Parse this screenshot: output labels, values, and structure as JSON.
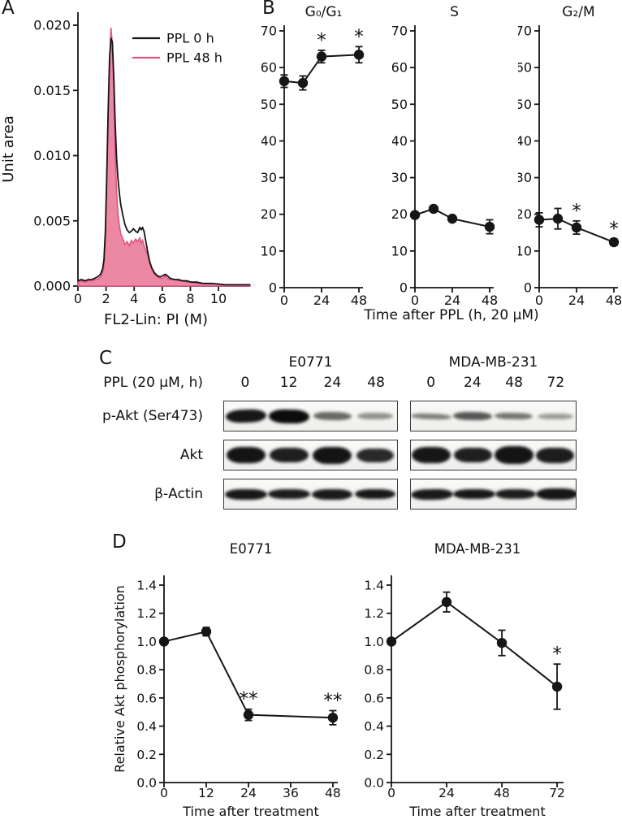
{
  "colors": {
    "ink": "#161616",
    "pink_line": "#de5680",
    "pink_fill": "#ec87a4"
  },
  "panels": {
    "a": {
      "label": "A"
    },
    "b": {
      "label": "B",
      "xlabel": "Time after PPL (h, 20 μM)"
    },
    "c": {
      "label": "C",
      "treatment_label": "PPL (20 μM, h)",
      "groups": [
        {
          "name": "E0771",
          "lanes": [
            "0",
            "12",
            "24",
            "48"
          ]
        },
        {
          "name": "MDA-MB-231",
          "lanes": [
            "0",
            "24",
            "48",
            "72"
          ]
        }
      ],
      "rows": [
        {
          "label": "p-Akt (Ser473)",
          "bands": [
            [
              {
                "i": 0.95,
                "h": 16,
                "w": 50,
                "r": -2
              },
              {
                "i": 1.0,
                "h": 17,
                "w": 50,
                "r": 1
              },
              {
                "i": 0.6,
                "h": 10,
                "w": 47,
                "r": 1
              },
              {
                "i": 0.42,
                "h": 8,
                "w": 44,
                "r": 0
              }
            ],
            [
              {
                "i": 0.5,
                "h": 7,
                "w": 50,
                "r": 2
              },
              {
                "i": 0.68,
                "h": 10,
                "w": 48,
                "r": 1
              },
              {
                "i": 0.55,
                "h": 8,
                "w": 47,
                "r": 1
              },
              {
                "i": 0.38,
                "h": 7,
                "w": 44,
                "r": 0
              }
            ]
          ]
        },
        {
          "label": "Akt",
          "bands": [
            [
              {
                "i": 0.97,
                "h": 20,
                "w": 48,
                "r": 0
              },
              {
                "i": 0.92,
                "h": 18,
                "w": 48,
                "r": 0
              },
              {
                "i": 0.97,
                "h": 21,
                "w": 48,
                "r": 0
              },
              {
                "i": 0.88,
                "h": 17,
                "w": 46,
                "r": 0
              }
            ],
            [
              {
                "i": 0.96,
                "h": 20,
                "w": 48,
                "r": 0
              },
              {
                "i": 0.92,
                "h": 18,
                "w": 47,
                "r": 0
              },
              {
                "i": 0.97,
                "h": 22,
                "w": 48,
                "r": 0
              },
              {
                "i": 0.93,
                "h": 19,
                "w": 47,
                "r": 0
              }
            ]
          ]
        },
        {
          "label": "β-Actin",
          "bands": [
            [
              {
                "i": 0.95,
                "h": 13,
                "w": 52,
                "r": 0
              },
              {
                "i": 0.93,
                "h": 12,
                "w": 52,
                "r": 0
              },
              {
                "i": 0.94,
                "h": 13,
                "w": 50,
                "r": 0
              },
              {
                "i": 0.95,
                "h": 12,
                "w": 50,
                "r": 0
              }
            ],
            [
              {
                "i": 0.94,
                "h": 13,
                "w": 52,
                "r": -1
              },
              {
                "i": 0.95,
                "h": 12,
                "w": 52,
                "r": 0
              },
              {
                "i": 0.93,
                "h": 12,
                "w": 50,
                "r": 0
              },
              {
                "i": 0.96,
                "h": 14,
                "w": 52,
                "r": 0
              }
            ]
          ]
        }
      ]
    },
    "d": {
      "label": "D"
    }
  },
  "chart_data": [
    {
      "id": "A",
      "type": "area",
      "xlabel": "FL2-Lin: PI (M)",
      "ylabel": "Unit area",
      "xlim": [
        0,
        12.25
      ],
      "ylim": [
        0,
        0.0205
      ],
      "xticks": [
        0,
        2,
        4,
        6,
        8,
        10
      ],
      "yticks": [
        0,
        0.005,
        0.01,
        0.015,
        0.02
      ],
      "ytick_labels": [
        "0.000",
        "0.005",
        "0.010",
        "0.015",
        "0.020"
      ],
      "legend_position": "top-right",
      "series": [
        {
          "name": "PPL 0 h",
          "color": "#161616",
          "fill": "none",
          "x": [
            0,
            0.25,
            0.5,
            0.75,
            1.0,
            1.2,
            1.4,
            1.6,
            1.75,
            1.85,
            1.95,
            2.05,
            2.15,
            2.25,
            2.35,
            2.45,
            2.55,
            2.65,
            2.75,
            2.85,
            2.95,
            3.05,
            3.2,
            3.35,
            3.5,
            3.65,
            3.8,
            3.95,
            4.1,
            4.25,
            4.4,
            4.5,
            4.6,
            4.7,
            4.8,
            4.95,
            5.1,
            5.25,
            5.45,
            5.65,
            5.85,
            6.05,
            6.2,
            6.35,
            6.55,
            6.85,
            7.15,
            7.45,
            7.75,
            8.05,
            8.45,
            8.9,
            9.5,
            10.5,
            11.5,
            12.25
          ],
          "y": [
            0.0004,
            0.0005,
            0.0004,
            0.0005,
            0.0005,
            0.0006,
            0.0007,
            0.0009,
            0.0013,
            0.002,
            0.0042,
            0.0085,
            0.0135,
            0.0175,
            0.019,
            0.0187,
            0.016,
            0.0125,
            0.0098,
            0.0082,
            0.0071,
            0.0062,
            0.0054,
            0.0047,
            0.0043,
            0.0041,
            0.0042,
            0.0044,
            0.0042,
            0.0041,
            0.0045,
            0.0043,
            0.0045,
            0.0042,
            0.0036,
            0.0027,
            0.0019,
            0.0014,
            0.001,
            0.0008,
            0.0007,
            0.0008,
            0.0009,
            0.0008,
            0.0006,
            0.0005,
            0.0005,
            0.0004,
            0.0004,
            0.0003,
            0.0003,
            0.0002,
            0.0002,
            0.0001,
            0.0001,
            0.0001
          ]
        },
        {
          "name": "PPL 48 h",
          "color": "#de5680",
          "fill": "#ec87a4",
          "x": [
            0,
            0.25,
            0.5,
            0.75,
            1.0,
            1.2,
            1.4,
            1.6,
            1.75,
            1.85,
            1.95,
            2.05,
            2.15,
            2.25,
            2.35,
            2.45,
            2.55,
            2.65,
            2.75,
            2.85,
            2.95,
            3.05,
            3.2,
            3.35,
            3.5,
            3.65,
            3.8,
            3.95,
            4.1,
            4.25,
            4.4,
            4.5,
            4.6,
            4.7,
            4.8,
            4.95,
            5.1,
            5.25,
            5.45,
            5.65,
            5.85,
            6.05,
            6.2,
            6.35,
            6.55,
            6.85,
            7.15,
            7.45,
            7.75,
            8.05,
            8.45,
            8.9,
            9.5,
            10.5,
            11.5,
            12.25
          ],
          "y": [
            0.0003,
            0.0004,
            0.0003,
            0.0004,
            0.0004,
            0.0005,
            0.0005,
            0.0007,
            0.001,
            0.0016,
            0.0038,
            0.008,
            0.013,
            0.0172,
            0.0198,
            0.0185,
            0.0148,
            0.0102,
            0.0072,
            0.0055,
            0.0046,
            0.004,
            0.0036,
            0.0032,
            0.0034,
            0.0031,
            0.0035,
            0.0033,
            0.0036,
            0.0034,
            0.0037,
            0.0033,
            0.0035,
            0.0031,
            0.0028,
            0.0024,
            0.0018,
            0.0013,
            0.0009,
            0.0007,
            0.0006,
            0.0006,
            0.0008,
            0.0006,
            0.0005,
            0.0005,
            0.0004,
            0.0004,
            0.0003,
            0.0003,
            0.0002,
            0.0002,
            0.0002,
            0.0001,
            0.0001,
            0.0001
          ]
        }
      ]
    },
    {
      "id": "B1",
      "type": "line",
      "title": "G₀/G₁",
      "x": [
        0,
        12,
        24,
        48
      ],
      "y": [
        56.3,
        55.8,
        63.0,
        63.5
      ],
      "err": [
        1.7,
        1.9,
        1.7,
        2.2
      ],
      "sig": [
        "",
        "",
        "*",
        "*"
      ],
      "xlim": [
        0,
        50.6
      ],
      "ylim": [
        0,
        70
      ],
      "xticks": [
        0,
        24,
        48
      ],
      "yticks": [
        0,
        10,
        20,
        30,
        40,
        50,
        60,
        70
      ]
    },
    {
      "id": "B2",
      "type": "line",
      "title": "S",
      "x": [
        0,
        12,
        24,
        48
      ],
      "y": [
        19.8,
        21.5,
        18.8,
        16.6
      ],
      "err": [
        0.8,
        0.7,
        0.8,
        1.9
      ],
      "sig": [
        "",
        "",
        "",
        ""
      ],
      "xlim": [
        0,
        50.6
      ],
      "ylim": [
        0,
        70
      ],
      "xticks": [
        0,
        24,
        48
      ],
      "yticks": [
        0,
        10,
        20,
        30,
        40,
        50,
        60,
        70
      ]
    },
    {
      "id": "B3",
      "type": "line",
      "title": "G₂/M",
      "x": [
        0,
        12,
        24,
        48
      ],
      "y": [
        18.5,
        18.8,
        16.4,
        12.4
      ],
      "err": [
        1.9,
        2.8,
        1.8,
        0.9
      ],
      "sig": [
        "",
        "",
        "*",
        "*"
      ],
      "xlim": [
        0,
        50.6
      ],
      "ylim": [
        0,
        70
      ],
      "xticks": [
        0,
        24,
        48
      ],
      "yticks": [
        0,
        10,
        20,
        30,
        40,
        50,
        60,
        70
      ]
    },
    {
      "id": "D1",
      "type": "line",
      "title": "E0771",
      "xlabel": "Time after treatment",
      "ylabel": "Relative Akt phosphorylation",
      "x": [
        0,
        12,
        24,
        48
      ],
      "y": [
        1.0,
        1.07,
        0.48,
        0.46
      ],
      "err": [
        0.02,
        0.03,
        0.04,
        0.05
      ],
      "sig": [
        "",
        "",
        "**",
        "**"
      ],
      "xlim": [
        0,
        49.4
      ],
      "ylim": [
        0,
        1.4
      ],
      "xticks": [
        0,
        12,
        24,
        36,
        48
      ],
      "yticks": [
        0,
        0.2,
        0.4,
        0.6,
        0.8,
        1.0,
        1.2,
        1.4
      ],
      "ytick_labels": [
        "0.0",
        "0.2",
        "0.4",
        "0.6",
        "0.8",
        "1.0",
        "1.2",
        "1.4"
      ]
    },
    {
      "id": "D2",
      "type": "line",
      "title": "MDA-MB-231",
      "xlabel": "Time after treatment",
      "x": [
        0,
        24,
        48,
        72
      ],
      "y": [
        1.0,
        1.28,
        0.99,
        0.68
      ],
      "err": [
        0.02,
        0.07,
        0.09,
        0.16
      ],
      "sig": [
        "",
        "",
        "",
        "*"
      ],
      "xlim": [
        0,
        74.8
      ],
      "ylim": [
        0,
        1.4
      ],
      "xticks": [
        0,
        24,
        48,
        72
      ],
      "yticks": [
        0,
        0.2,
        0.4,
        0.6,
        0.8,
        1.0,
        1.2,
        1.4
      ],
      "ytick_labels": [
        "0.0",
        "0.2",
        "0.4",
        "0.6",
        "0.8",
        "1.0",
        "1.2",
        "1.4"
      ]
    }
  ]
}
